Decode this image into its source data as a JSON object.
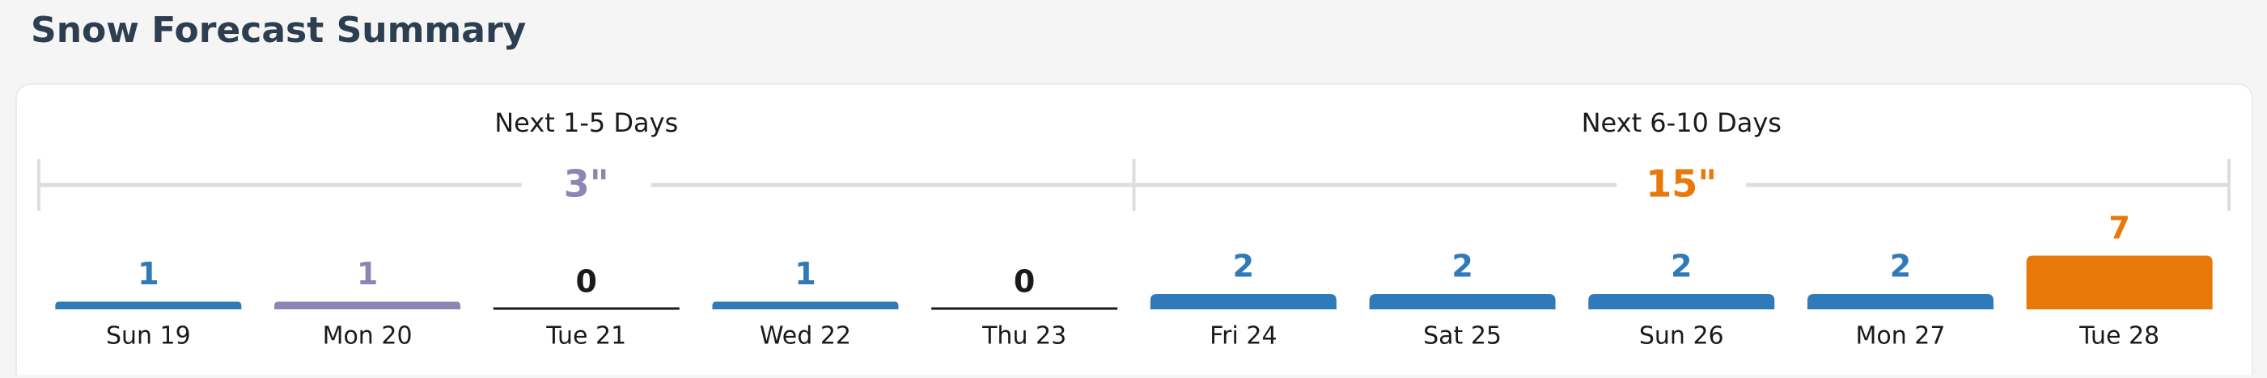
{
  "header": {
    "title": "Snow Forecast Summary"
  },
  "chart_data": {
    "type": "bar",
    "groups": [
      {
        "label": "Next 1-5 Days",
        "total": {
          "value": 3,
          "label": "3\""
        },
        "color": "#8c86b4"
      },
      {
        "label": "Next 6-10 Days",
        "total": {
          "value": 15,
          "label": "15\""
        },
        "color": "#e8780a"
      }
    ],
    "categories": [
      "Sun 19",
      "Mon 20",
      "Tue 21",
      "Wed 22",
      "Thu 23",
      "Fri 24",
      "Sat 25",
      "Sun 26",
      "Mon 27",
      "Tue 28"
    ],
    "values": [
      1,
      1,
      0,
      1,
      0,
      2,
      2,
      2,
      2,
      7
    ],
    "colors": [
      "#2f7ab8",
      "#8c86b4",
      "#1a1a1a",
      "#2f7ab8",
      "#1a1a1a",
      "#2f7ab8",
      "#2f7ab8",
      "#2f7ab8",
      "#2f7ab8",
      "#e8780a"
    ]
  }
}
